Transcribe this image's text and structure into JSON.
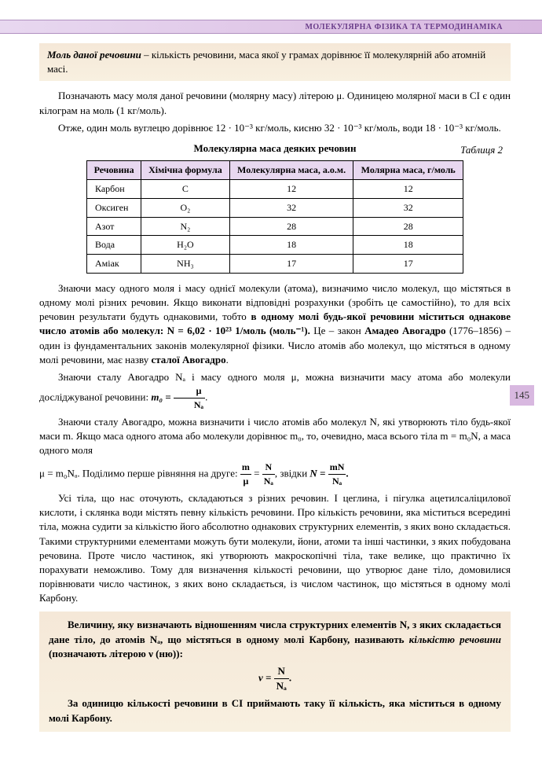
{
  "header": "МОЛЕКУЛЯРНА ФІЗИКА ТА ТЕРМОДИНАМІКА",
  "page_number": "145",
  "def1": {
    "term": "Моль даної речовини",
    "text": " – кількість речовини, маса якої у грамах дорівнює її молекулярній або атомній масі."
  },
  "p1": "Позначають масу моля даної речовини (молярну масу) літерою μ. Одиницею молярної маси в СІ є один кілограм на моль (1 кг/моль).",
  "p2": "Отже, один моль вуглецю дорівнює 12 · 10⁻³ кг/моль, кисню 32 · 10⁻³ кг/моль, води 18 · 10⁻³ кг/моль.",
  "table_title": "Молекулярна маса деяких речовин",
  "table_label": "Таблиця 2",
  "table": {
    "headers": [
      "Речовина",
      "Хімічна формула",
      "Молекулярна маса, а.о.м.",
      "Молярна маса, г/моль"
    ],
    "rows": [
      [
        "Карбон",
        "C",
        "12",
        "12"
      ],
      [
        "Оксиген",
        "O₂",
        "32",
        "32"
      ],
      [
        "Азот",
        "N₂",
        "28",
        "28"
      ],
      [
        "Вода",
        "H₂O",
        "18",
        "18"
      ],
      [
        "Аміак",
        "NH₃",
        "17",
        "17"
      ]
    ]
  },
  "p3a": "Знаючи масу одного моля і масу однієї молекули (атома), визначимо число молекул, що містяться в одному молі різних речовин. Якщо виконати відповідні розрахунки (зробіть це самостійно), то для всіх речовин результати будуть однаковими, тобто ",
  "p3b": "в одному молі будь-якої речовини міститься однакове число атомів або молекул: N = 6,02 · 10²³ 1/моль (моль⁻¹).",
  "p3c": " Це – закон ",
  "p3d": "Амадео Авогадро",
  "p3e": " (1776–1856) – один із фундаментальних законів молекулярної фізики. Число атомів або молекул, що містяться в одному молі речовини, має назву ",
  "p3f": "сталої Авогадро",
  "p3g": ".",
  "p4": "Знаючи сталу Авогадро Nₐ і масу одного моля μ, можна визначити масу атома або молекули досліджуваної речовини: ",
  "f1": {
    "left": "m₀ = ",
    "num": "μ",
    "den": "Nₐ",
    "right": "."
  },
  "p5a": "Знаючи сталу Авогадро, можна визначити і число атомів або молекул N, які утворюють тіло будь-якої маси m. Якщо маса одного атома або молекули дорівнює m₀, то, очевидно, маса всього тіла m = m₀N, а маса одного моля",
  "p5b": "μ = m₀Nₐ. Поділимо перше рівняння на друге: ",
  "f2a": {
    "num": "m",
    "den": "μ"
  },
  "f2mid": " = ",
  "f2b": {
    "num": "N",
    "den": "Nₐ"
  },
  "f2after": ", звідки ",
  "f2c_left": "N = ",
  "f2c": {
    "num": "mN",
    "den": "Nₐ"
  },
  "f2end": ".",
  "p6": "Усі тіла, що нас оточують, складаються з різних речовин. І цеглина, і пігулка ацетилсаліцилової кислоти, і склянка води містять певну кількість речовини. Про кількість речовини, яка міститься всередині тіла, можна судити за кількістю його абсолютно однакових структурних елементів, з яких воно складається. Такими структурними елементами можуть бути молекули, йони, атоми та інші частинки, з яких побудована речовина. Проте число частинок, які утворюють макроскопічні тіла, таке велике, що практично їх порахувати неможливо. Тому для визначення кількості речовини, що утворює дане тіло, домовилися порівнювати число частинок, з яких воно складається, із числом частинок, що містяться в одному молі Карбону.",
  "def2": {
    "text1": "Величину, яку визначають відношенням числа структурних елементів N, з яких складається дане тіло, до атомів Nₐ, що містяться в одному молі Карбону, називають ",
    "term": "кількістю речовини",
    "text2": " (позначають літерою ",
    "sym": "ν",
    "text3": " (ню)):",
    "formula": {
      "left": "ν = ",
      "num": "N",
      "den": "Nₐ",
      "right": "."
    },
    "text4": "За одиницю кількості речовини в СІ приймають таку її кількість, яка міститься в одному молі Карбону."
  }
}
